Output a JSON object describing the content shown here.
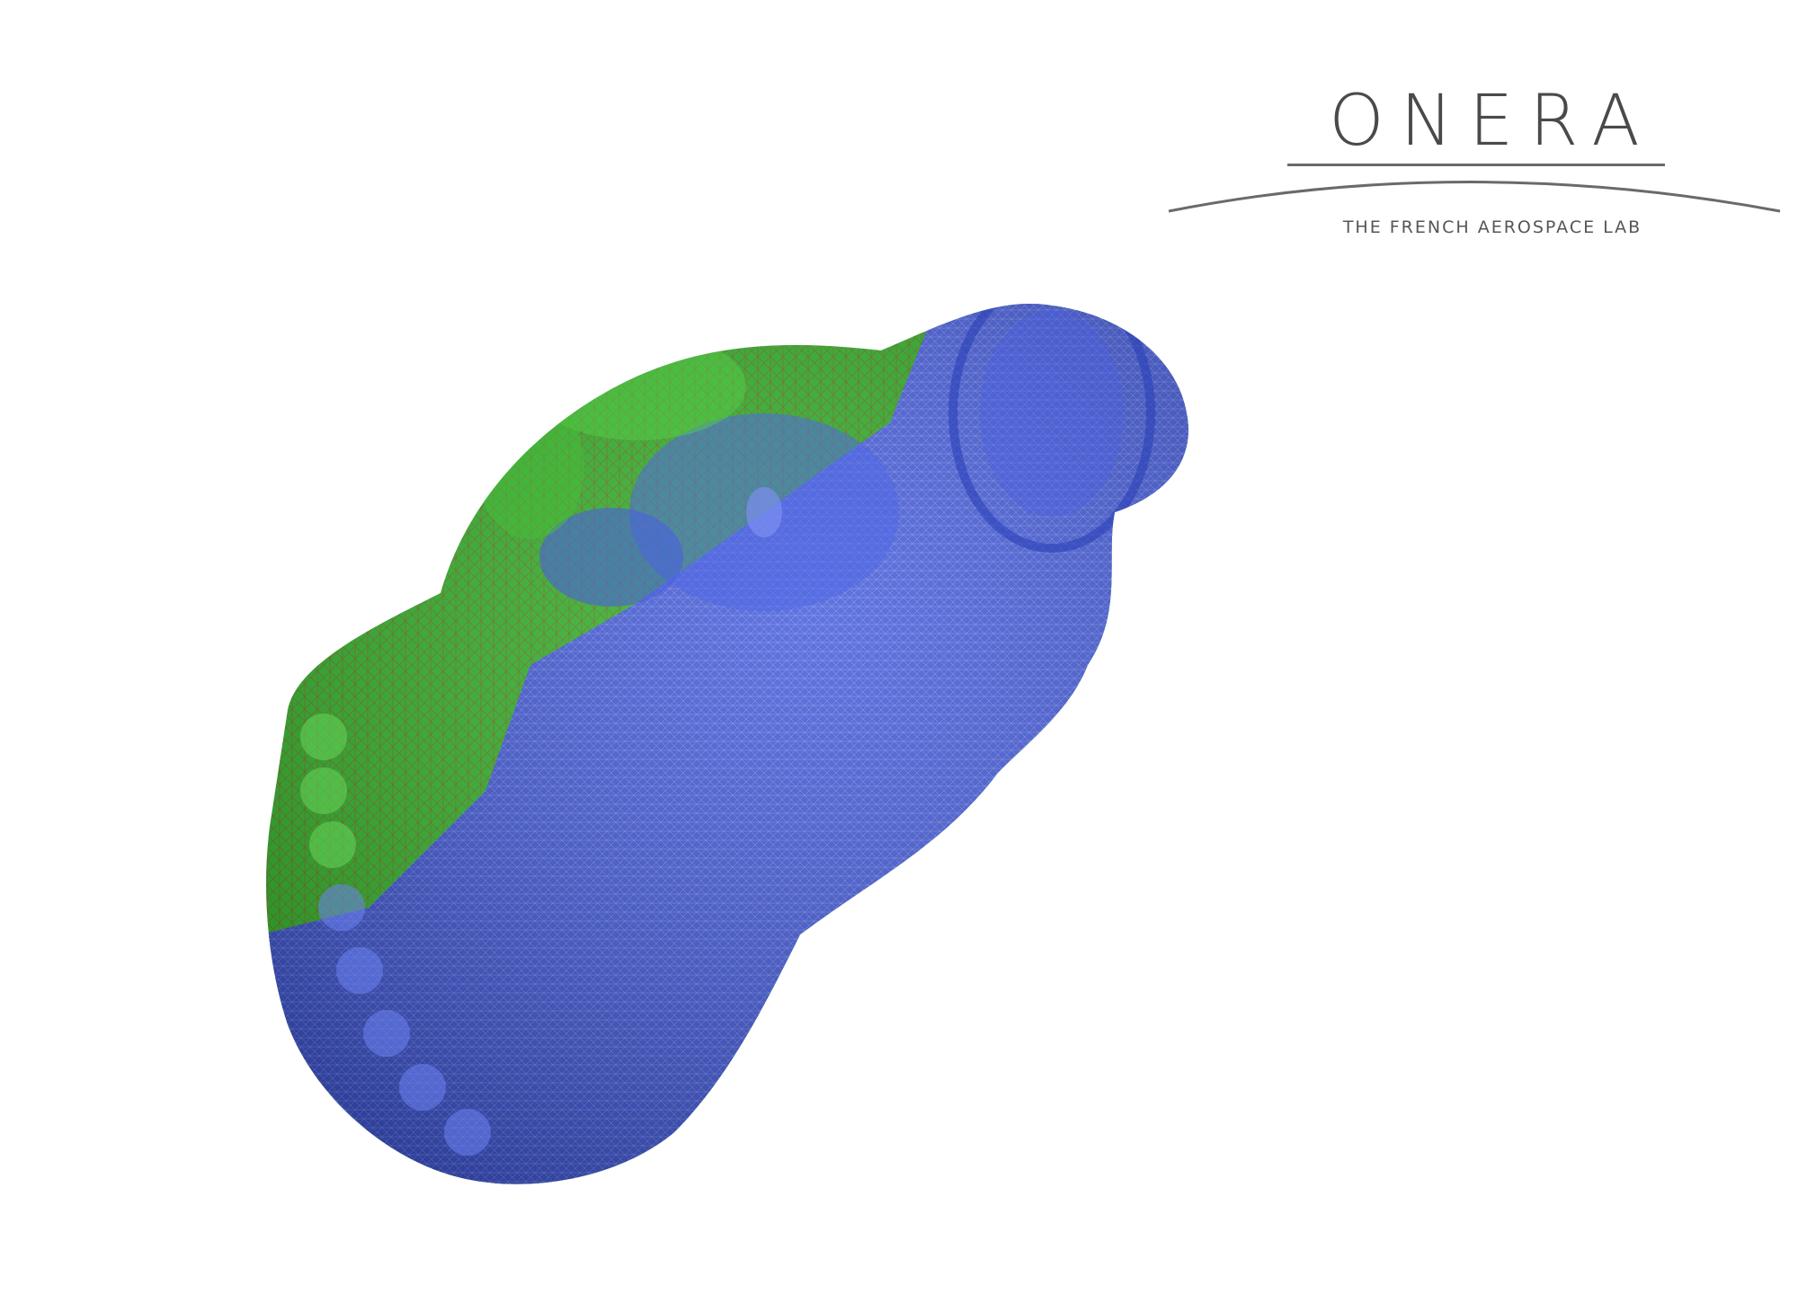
{
  "logo": {
    "wordmark": "ONERA",
    "tagline": "THE FRENCH AEROSPACE LAB"
  },
  "colors": {
    "mesh_green": "#2fb22a",
    "mesh_red_edges": "#c0200f",
    "mesh_blue": "#3f55d8",
    "mesh_light_blue_edges": "#a9c3ff",
    "logo_gray": "#4a4a4a"
  }
}
